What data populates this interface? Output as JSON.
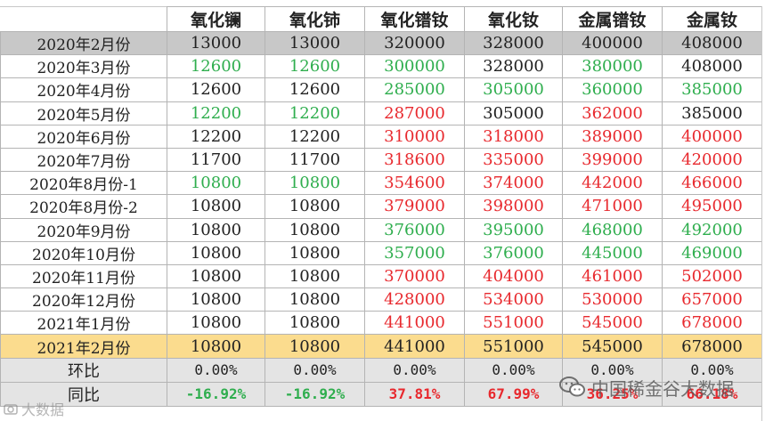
{
  "columns": [
    "氧化镧",
    "氧化铈",
    "氧化镨钕",
    "氧化钕",
    "金属镨钕",
    "金属钕"
  ],
  "rows": [
    {
      "month": "2020年2月份",
      "style": "feb2020",
      "cells": [
        {
          "v": "13000",
          "c": "black"
        },
        {
          "v": "13000",
          "c": "black"
        },
        {
          "v": "320000",
          "c": "black"
        },
        {
          "v": "328000",
          "c": "black"
        },
        {
          "v": "400000",
          "c": "black"
        },
        {
          "v": "408000",
          "c": "black"
        }
      ]
    },
    {
      "month": "2020年3月份",
      "style": "",
      "cells": [
        {
          "v": "12600",
          "c": "green"
        },
        {
          "v": "12600",
          "c": "green"
        },
        {
          "v": "300000",
          "c": "green"
        },
        {
          "v": "328000",
          "c": "black"
        },
        {
          "v": "380000",
          "c": "green"
        },
        {
          "v": "408000",
          "c": "black"
        }
      ]
    },
    {
      "month": "2020年4月份",
      "style": "",
      "cells": [
        {
          "v": "12600",
          "c": "black"
        },
        {
          "v": "12600",
          "c": "black"
        },
        {
          "v": "285000",
          "c": "green"
        },
        {
          "v": "305000",
          "c": "green"
        },
        {
          "v": "360000",
          "c": "green"
        },
        {
          "v": "385000",
          "c": "green"
        }
      ]
    },
    {
      "month": "2020年5月份",
      "style": "",
      "cells": [
        {
          "v": "12200",
          "c": "green"
        },
        {
          "v": "12200",
          "c": "green"
        },
        {
          "v": "287000",
          "c": "red"
        },
        {
          "v": "305000",
          "c": "black"
        },
        {
          "v": "362000",
          "c": "red"
        },
        {
          "v": "385000",
          "c": "black"
        }
      ]
    },
    {
      "month": "2020年6月份",
      "style": "",
      "cells": [
        {
          "v": "12200",
          "c": "black"
        },
        {
          "v": "12200",
          "c": "black"
        },
        {
          "v": "310000",
          "c": "red"
        },
        {
          "v": "318000",
          "c": "red"
        },
        {
          "v": "389000",
          "c": "red"
        },
        {
          "v": "400000",
          "c": "red"
        }
      ]
    },
    {
      "month": "2020年7月份",
      "style": "",
      "cells": [
        {
          "v": "11700",
          "c": "black"
        },
        {
          "v": "11700",
          "c": "black"
        },
        {
          "v": "318600",
          "c": "red"
        },
        {
          "v": "335000",
          "c": "red"
        },
        {
          "v": "399000",
          "c": "red"
        },
        {
          "v": "420000",
          "c": "red"
        }
      ]
    },
    {
      "month": "2020年8月份-1",
      "style": "",
      "cells": [
        {
          "v": "10800",
          "c": "green"
        },
        {
          "v": "10800",
          "c": "green"
        },
        {
          "v": "354600",
          "c": "red"
        },
        {
          "v": "374000",
          "c": "red"
        },
        {
          "v": "442000",
          "c": "red"
        },
        {
          "v": "466000",
          "c": "red"
        }
      ]
    },
    {
      "month": "2020年8月份-2",
      "style": "",
      "cells": [
        {
          "v": "10800",
          "c": "black"
        },
        {
          "v": "10800",
          "c": "black"
        },
        {
          "v": "379000",
          "c": "red"
        },
        {
          "v": "398000",
          "c": "red"
        },
        {
          "v": "471000",
          "c": "red"
        },
        {
          "v": "495000",
          "c": "red"
        }
      ]
    },
    {
      "month": "2020年9月份",
      "style": "",
      "cells": [
        {
          "v": "10800",
          "c": "black"
        },
        {
          "v": "10800",
          "c": "black"
        },
        {
          "v": "376000",
          "c": "green"
        },
        {
          "v": "395000",
          "c": "green"
        },
        {
          "v": "468000",
          "c": "green"
        },
        {
          "v": "492000",
          "c": "green"
        }
      ]
    },
    {
      "month": "2020年10月份",
      "style": "",
      "cells": [
        {
          "v": "10800",
          "c": "black"
        },
        {
          "v": "10800",
          "c": "black"
        },
        {
          "v": "357000",
          "c": "green"
        },
        {
          "v": "376000",
          "c": "green"
        },
        {
          "v": "445000",
          "c": "green"
        },
        {
          "v": "469000",
          "c": "green"
        }
      ]
    },
    {
      "month": "2020年11月份",
      "style": "",
      "cells": [
        {
          "v": "10800",
          "c": "black"
        },
        {
          "v": "10800",
          "c": "black"
        },
        {
          "v": "370000",
          "c": "red"
        },
        {
          "v": "404000",
          "c": "red"
        },
        {
          "v": "461000",
          "c": "red"
        },
        {
          "v": "502000",
          "c": "red"
        }
      ]
    },
    {
      "month": "2020年12月份",
      "style": "",
      "cells": [
        {
          "v": "10800",
          "c": "black"
        },
        {
          "v": "10800",
          "c": "black"
        },
        {
          "v": "428000",
          "c": "red"
        },
        {
          "v": "534000",
          "c": "red"
        },
        {
          "v": "530000",
          "c": "red"
        },
        {
          "v": "657000",
          "c": "red"
        }
      ]
    },
    {
      "month": "2021年1月份",
      "style": "",
      "cells": [
        {
          "v": "10800",
          "c": "black"
        },
        {
          "v": "10800",
          "c": "black"
        },
        {
          "v": "441000",
          "c": "red"
        },
        {
          "v": "551000",
          "c": "red"
        },
        {
          "v": "545000",
          "c": "red"
        },
        {
          "v": "678000",
          "c": "red"
        }
      ]
    },
    {
      "month": "2021年2月份",
      "style": "feb2021",
      "cells": [
        {
          "v": "10800",
          "c": "black"
        },
        {
          "v": "10800",
          "c": "black"
        },
        {
          "v": "441000",
          "c": "black"
        },
        {
          "v": "551000",
          "c": "black"
        },
        {
          "v": "545000",
          "c": "black"
        },
        {
          "v": "678000",
          "c": "black"
        }
      ]
    },
    {
      "month": "环比",
      "style": "hb",
      "cells": [
        {
          "v": "0.00%",
          "c": "black"
        },
        {
          "v": "0.00%",
          "c": "black"
        },
        {
          "v": "0.00%",
          "c": "black"
        },
        {
          "v": "0.00%",
          "c": "black"
        },
        {
          "v": "0.00%",
          "c": "black"
        },
        {
          "v": "0.00%",
          "c": "black"
        }
      ]
    },
    {
      "month": "同比",
      "style": "tb",
      "cells": [
        {
          "v": "-16.92%",
          "c": "green"
        },
        {
          "v": "-16.92%",
          "c": "green"
        },
        {
          "v": "37.81%",
          "c": "red"
        },
        {
          "v": "67.99%",
          "c": "red"
        },
        {
          "v": "36.25%",
          "c": "red"
        },
        {
          "v": "66.18%",
          "c": "red"
        }
      ]
    }
  ],
  "watermark_right": "中国稀金谷大数据",
  "watermark_left": "大数据",
  "colors": {
    "green": "#2fae4e",
    "red": "#e8292e",
    "feb2020_bg": "#c8c8c8",
    "feb2021_bg": "#fbdc8e"
  }
}
